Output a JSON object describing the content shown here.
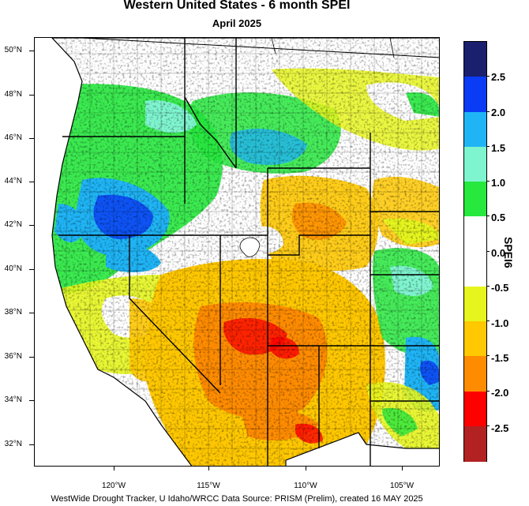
{
  "header": {
    "title": "Western United States - 6 month SPEI",
    "subtitle": "April 2025"
  },
  "map": {
    "latitude_labels": [
      "50°N",
      "48°N",
      "46°N",
      "44°N",
      "42°N",
      "40°N",
      "38°N",
      "36°N",
      "34°N",
      "32°N"
    ],
    "longitude_labels": [
      "120°W",
      "115°W",
      "110°W",
      "105°W"
    ],
    "dominant_conditions": {
      "pacific_northwest_and_northern_rockies": "wet",
      "great_basin_and_california": "near normal to dry",
      "southwest_four_corners": "dry to very dry"
    }
  },
  "colorbar": {
    "title": "SPEI6",
    "labels": [
      "2.5",
      "2.0",
      "1.5",
      "1.0",
      "0.5",
      "0.0",
      "-0.5",
      "-1.0",
      "-1.5",
      "-2.0",
      "-2.5"
    ],
    "colors": [
      "#1a1f6e",
      "#0a3bf5",
      "#1fb4f5",
      "#7ff5cf",
      "#26e83d",
      "#ffffff",
      "#ffffff",
      "#e6f51e",
      "#ffc800",
      "#ff8c00",
      "#ff0000",
      "#b22222"
    ]
  },
  "footer": {
    "credit": "WestWide Drought Tracker, U Idaho/WRCC Data Source: PRISM (Prelim), created 16 MAY 2025"
  }
}
